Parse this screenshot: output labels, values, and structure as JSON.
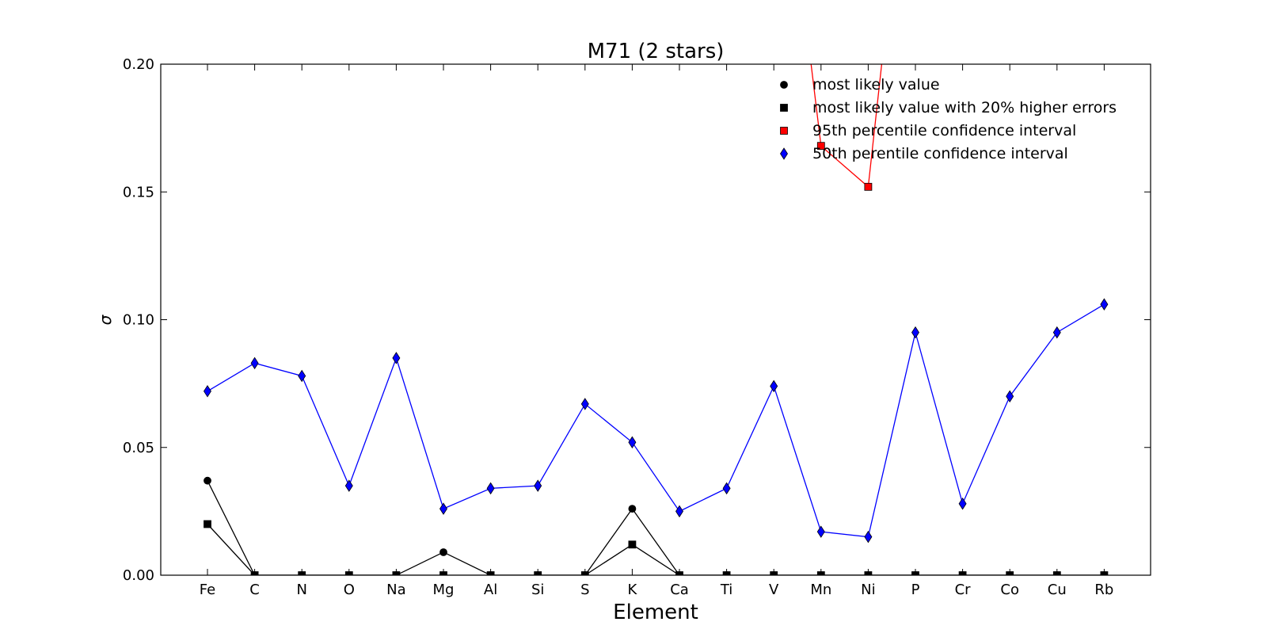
{
  "chart_data": {
    "type": "line",
    "title": "M71 (2 stars)",
    "xlabel": "Element",
    "ylabel": "σ",
    "ylim": [
      0.0,
      0.2
    ],
    "yticks": [
      "0.00",
      "0.05",
      "0.10",
      "0.15",
      "0.20"
    ],
    "grid": false,
    "legend_position": "top-right",
    "categories": [
      "Fe",
      "C",
      "N",
      "O",
      "Na",
      "Mg",
      "Al",
      "Si",
      "S",
      "K",
      "Ca",
      "Ti",
      "V",
      "Mn",
      "Ni",
      "P",
      "Cr",
      "Co",
      "Cu",
      "Rb"
    ],
    "series": [
      {
        "name": "most likely value",
        "color": "#000000",
        "marker": "circle",
        "values": [
          0.037,
          0,
          0,
          0,
          0,
          0.009,
          0,
          0,
          0,
          0.026,
          0,
          0,
          0,
          0,
          0,
          0,
          0,
          0,
          0,
          0
        ]
      },
      {
        "name": "most likely value with 20% higher errors",
        "color": "#000000",
        "marker": "square",
        "values": [
          0.02,
          0,
          0,
          0,
          0,
          0,
          0,
          0,
          0,
          0.012,
          0,
          0,
          0,
          0,
          0,
          0,
          0,
          0,
          0,
          0
        ]
      },
      {
        "name": "95th percentile confidence interval",
        "color": "#ff0000",
        "marker": "square",
        "values": [
          null,
          null,
          null,
          null,
          null,
          null,
          null,
          null,
          null,
          null,
          null,
          null,
          0.32,
          0.168,
          0.152,
          0.32,
          null,
          null,
          null,
          null
        ]
      },
      {
        "name": "50th perentile confidence interval",
        "color": "#0000ff",
        "marker": "diamond",
        "values": [
          0.072,
          0.083,
          0.078,
          0.035,
          0.085,
          0.026,
          0.034,
          0.035,
          0.067,
          0.052,
          0.025,
          0.034,
          0.074,
          0.017,
          0.015,
          0.095,
          0.028,
          0.07,
          0.095,
          0.106
        ]
      }
    ]
  }
}
